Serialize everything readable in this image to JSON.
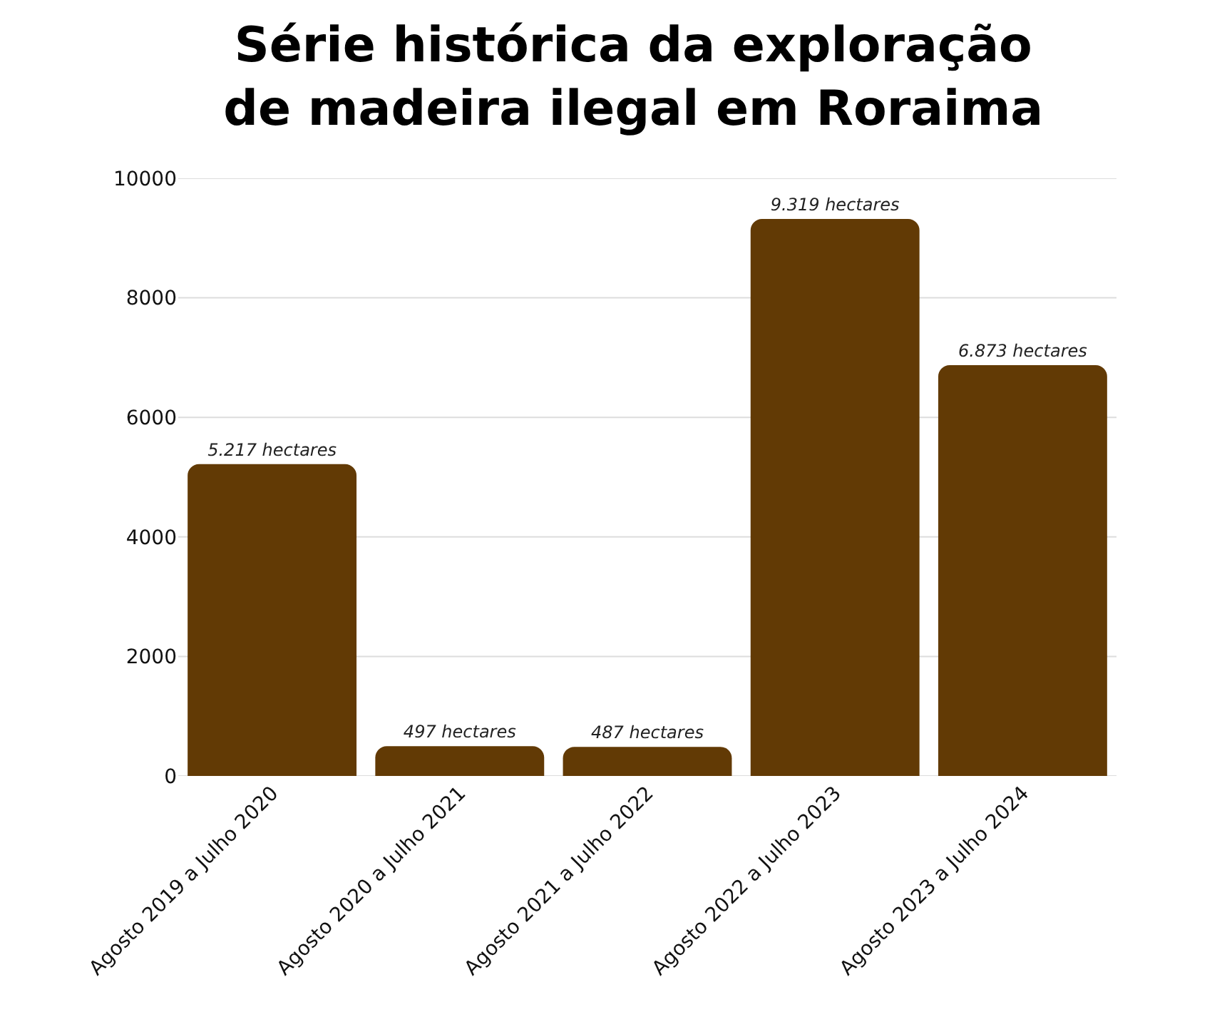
{
  "chart_data": {
    "type": "bar",
    "title": "Série histórica da exploração\nde madeira ilegal em Roraima",
    "categories": [
      "Agosto 2019 a Julho 2020",
      "Agosto 2020 a Julho 2021",
      "Agosto 2021 a Julho 2022",
      "Agosto 2022 a Julho 2023",
      "Agosto 2023 a Julho 2024"
    ],
    "values": [
      5217,
      497,
      487,
      9319,
      6873
    ],
    "value_labels": [
      "5.217 hectares",
      "497 hectares",
      "487 hectares",
      "9.319 hectares",
      "6.873 hectares"
    ],
    "color": "#623a05",
    "ylim": [
      0,
      10000
    ],
    "yticks": [
      0,
      2000,
      4000,
      6000,
      8000,
      10000
    ],
    "grid": "y"
  }
}
